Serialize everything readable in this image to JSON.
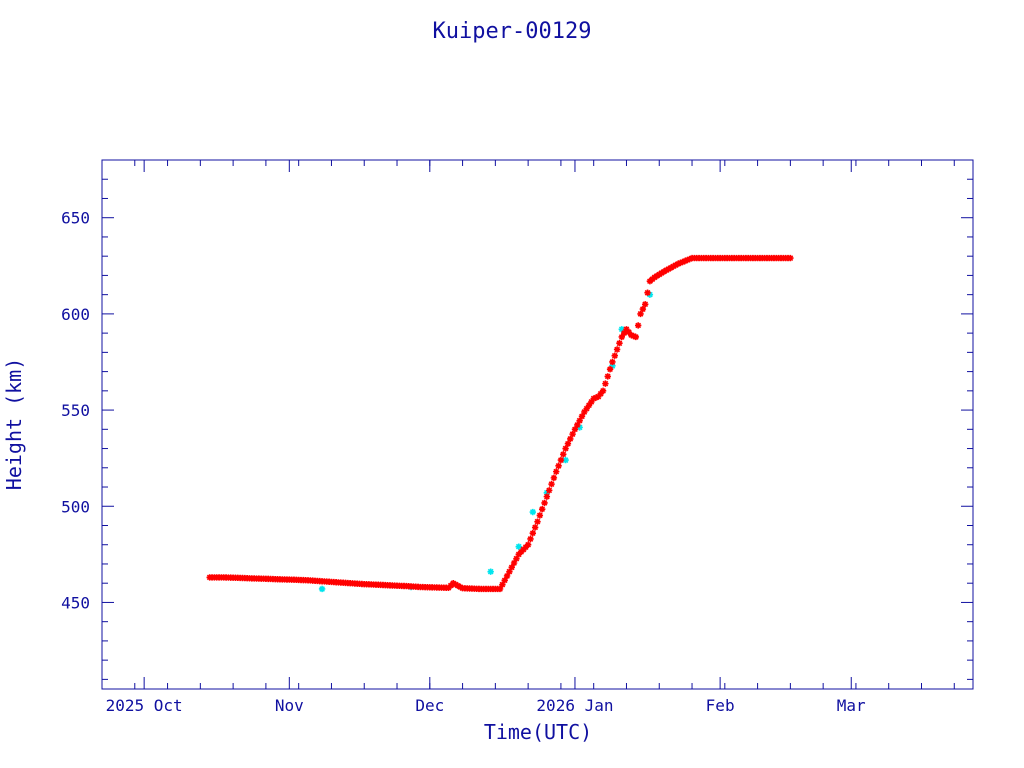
{
  "chart_data": {
    "type": "scatter",
    "title": "Kuiper-00129",
    "xlabel": "Time(UTC)",
    "ylabel": "Height (km)",
    "ylim": [
      405,
      680
    ],
    "xlim": [
      "2025-09-22",
      "2026-03-27"
    ],
    "grid": false,
    "x_ticks": [
      {
        "date": "2025-10-01",
        "label": "2025 Oct"
      },
      {
        "date": "2025-11-01",
        "label": "Nov"
      },
      {
        "date": "2025-12-01",
        "label": "Dec"
      },
      {
        "date": "2026-01-01",
        "label": "2026 Jan"
      },
      {
        "date": "2026-02-01",
        "label": "Feb"
      },
      {
        "date": "2026-03-01",
        "label": "Mar"
      }
    ],
    "y_ticks": [
      450,
      500,
      550,
      600,
      650
    ],
    "colors": {
      "axis": "#1010a0",
      "primary": "#ff0000",
      "secondary": "#00e5ee"
    },
    "series": [
      {
        "color": "#ff0000",
        "marker": "star",
        "x": [
          "2025-10-15",
          "2025-10-18",
          "2025-10-21",
          "2025-10-24",
          "2025-10-27",
          "2025-10-30",
          "2025-11-02",
          "2025-11-05",
          "2025-11-08",
          "2025-11-11",
          "2025-11-14",
          "2025-11-17",
          "2025-11-20",
          "2025-11-23",
          "2025-11-26",
          "2025-11-29",
          "2025-12-02",
          "2025-12-05",
          "2025-12-06",
          "2025-12-08",
          "2025-12-10",
          "2025-12-12",
          "2025-12-14",
          "2025-12-16",
          "2025-12-18",
          "2025-12-20",
          "2025-12-22",
          "2025-12-24",
          "2025-12-26",
          "2025-12-28",
          "2025-12-30",
          "2026-01-01",
          "2026-01-03",
          "2026-01-05",
          "2026-01-06",
          "2026-01-07",
          "2026-01-09",
          "2026-01-11",
          "2026-01-12",
          "2026-01-13",
          "2026-01-14",
          "2026-01-15",
          "2026-01-16",
          "2026-01-17",
          "2026-01-18",
          "2026-01-20",
          "2026-01-23",
          "2026-01-26",
          "2026-01-29",
          "2026-02-01",
          "2026-02-04",
          "2026-02-07",
          "2026-02-10",
          "2026-02-13",
          "2026-02-16"
        ],
        "y": [
          463,
          463,
          462.8,
          462.5,
          462.3,
          462,
          461.8,
          461.5,
          461,
          460.5,
          460,
          459.5,
          459.2,
          458.8,
          458.5,
          458,
          457.8,
          457.6,
          460,
          457.4,
          457.2,
          457,
          457,
          457,
          466,
          475,
          480,
          492,
          505,
          518,
          530,
          540,
          549,
          556,
          557,
          560,
          575,
          588,
          592,
          589,
          588,
          600,
          605,
          617,
          619,
          622,
          626,
          629,
          629,
          629,
          629,
          629,
          629,
          629,
          629
        ]
      },
      {
        "color": "#00e5ee",
        "marker": "star",
        "x": [
          "2025-11-08",
          "2025-11-27",
          "2025-12-14",
          "2025-12-20",
          "2025-12-23",
          "2025-12-26",
          "2025-12-30",
          "2026-01-02",
          "2026-01-09",
          "2026-01-11",
          "2026-01-17"
        ],
        "y": [
          457,
          458,
          466,
          479,
          497,
          507,
          524,
          541,
          573,
          592,
          610
        ]
      }
    ]
  }
}
